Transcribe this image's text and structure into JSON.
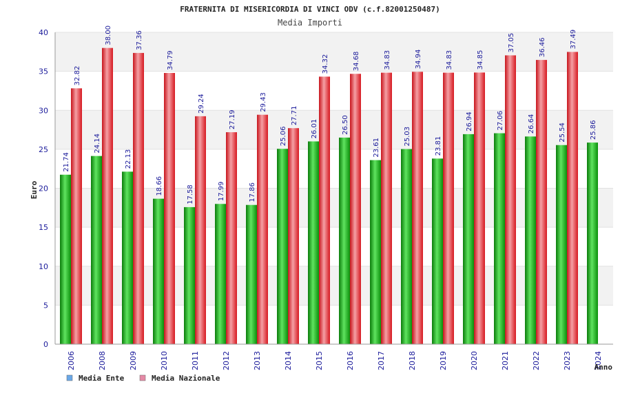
{
  "chart_data": {
    "type": "bar",
    "title": "FRATERNITA DI MISERICORDIA DI VINCI ODV (c.f.82001250487)",
    "subtitle": "Media Importi",
    "ylabel": "Euro",
    "xlabel": "Anno",
    "ylim": [
      0,
      40
    ],
    "yticks": [
      0,
      5,
      10,
      15,
      20,
      25,
      30,
      35,
      40
    ],
    "grid": true,
    "legend_position": "bottom-left",
    "categories": [
      "2006",
      "2008",
      "2009",
      "2010",
      "2011",
      "2012",
      "2013",
      "2014",
      "2015",
      "2016",
      "2017",
      "2018",
      "2019",
      "2020",
      "2021",
      "2022",
      "2023",
      "2024"
    ],
    "series": [
      {
        "name": "Media Ente",
        "color": "#16b516",
        "legend_color": "#6aa8e8",
        "values": [
          21.74,
          24.14,
          22.13,
          18.66,
          17.58,
          17.99,
          17.86,
          25.06,
          26.01,
          26.5,
          23.61,
          25.03,
          23.81,
          26.94,
          27.06,
          26.64,
          25.54,
          25.86
        ],
        "labels": [
          "21.74",
          "24.14",
          "22.13",
          "18.66",
          "17.58",
          "17.99",
          "17.86",
          "25.06",
          "26.01",
          "26.50",
          "23.61",
          "25.03",
          "23.81",
          "26.94",
          "27.06",
          "26.64",
          "25.54",
          "25.86"
        ]
      },
      {
        "name": "Media Nazionale",
        "color": "#e8222a",
        "legend_color": "#e58aa6",
        "values": [
          32.82,
          38.0,
          37.36,
          34.79,
          29.24,
          27.19,
          29.43,
          27.71,
          34.32,
          34.68,
          34.83,
          34.94,
          34.83,
          34.85,
          37.05,
          36.46,
          37.49,
          null
        ],
        "labels": [
          "32.82",
          "38.00",
          "37.36",
          "34.79",
          "29.24",
          "27.19",
          "29.43",
          "27.71",
          "34.32",
          "34.68",
          "34.83",
          "34.94",
          "34.83",
          "34.85",
          "37.05",
          "36.46",
          "37.49",
          ""
        ]
      }
    ]
  }
}
